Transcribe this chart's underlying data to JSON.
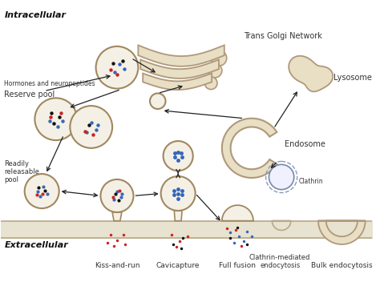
{
  "background_color": "#ffffff",
  "membrane_color": "#e8e2d0",
  "membrane_border_color": "#b8a888",
  "vesicle_fill": "#f5f0e5",
  "vesicle_border": "#a08860",
  "organelle_fill": "#e8dfc5",
  "organelle_border": "#b0987a",
  "dots": {
    "blue": "#3366bb",
    "red": "#cc2222",
    "black": "#111111"
  },
  "labels": {
    "intracellular": "Intracellular",
    "extracellular": "Extracellular",
    "trans_golgi": "Trans Golgi Network",
    "lysosome": "Lysosome",
    "endosome": "Endosome",
    "reserve_pool": "Reserve pool",
    "hormones": "Hormones and neuropeptides",
    "readily_releasable": "Readily\nreleasable\npool",
    "kiss_and_run": "Kiss-and-run",
    "cavicapture": "Cavicapture",
    "full_fusion": "Full fusion",
    "clathrin_mediated": "Clathrin-mediated\nendocytosis",
    "bulk_endocytosis": "Bulk endocytosis",
    "clathrin": "Clathrin"
  },
  "figsize": [
    4.74,
    3.57
  ],
  "dpi": 100
}
